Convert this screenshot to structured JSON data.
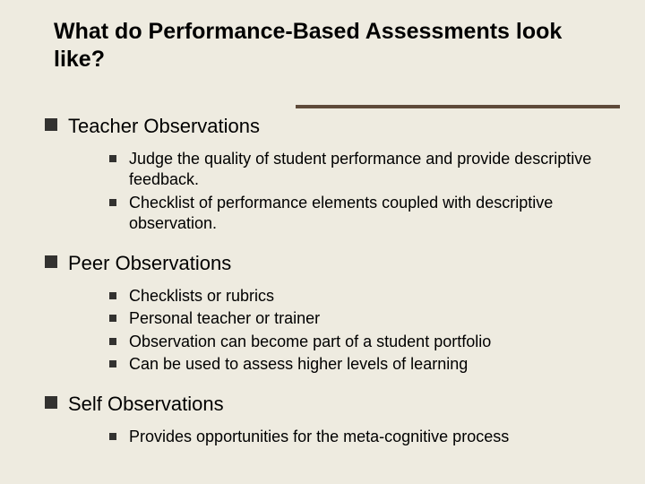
{
  "colors": {
    "background": "#eeebe0",
    "text": "#000000",
    "bullet": "#333230",
    "underline": "#5e4a3a"
  },
  "title": "What do Performance-Based Assessments look like?",
  "sections": [
    {
      "heading": "Teacher Observations",
      "items": [
        "Judge the quality of student performance and provide descriptive feedback.",
        "Checklist of performance elements coupled with descriptive observation."
      ]
    },
    {
      "heading": "Peer Observations",
      "items": [
        "Checklists or rubrics",
        "Personal teacher or trainer",
        "Observation can become part of a student portfolio",
        "Can be used to assess higher levels of learning"
      ]
    },
    {
      "heading": "Self Observations",
      "items": [
        "Provides opportunities for the meta-cognitive process"
      ]
    }
  ]
}
